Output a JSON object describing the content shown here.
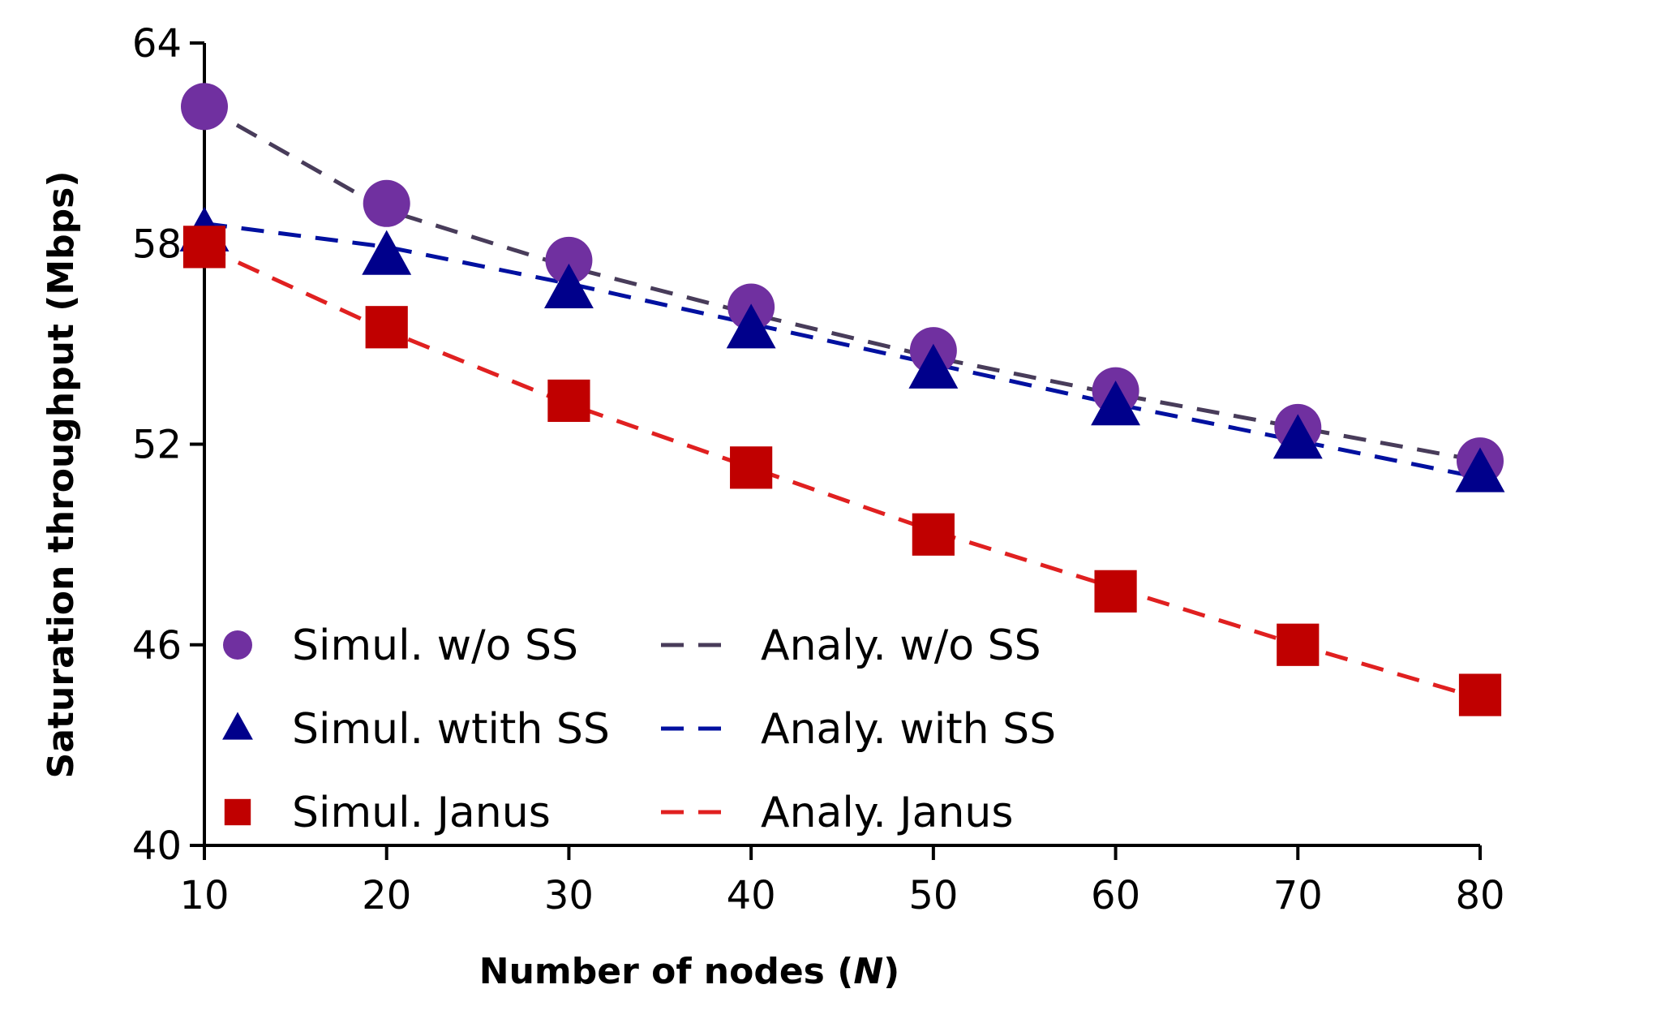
{
  "chart_data": {
    "type": "line",
    "xlabel": "Number of nodes (",
    "xlabel_italic": "N",
    "xlabel_suffix": ")",
    "ylabel": "Saturation throughput (Mbps)",
    "x": [
      10,
      20,
      30,
      40,
      50,
      60,
      70,
      80
    ],
    "xlim": [
      10,
      80
    ],
    "ylim": [
      40,
      64
    ],
    "xticks": [
      "10",
      "20",
      "30",
      "40",
      "50",
      "60",
      "70",
      "80"
    ],
    "yticks": [
      "40",
      "46",
      "52",
      "58",
      "64"
    ],
    "grid": false,
    "legend_position": "bottom-left",
    "series": [
      {
        "name": "Simul. w/o SS",
        "kind": "marker",
        "marker": "circle",
        "color": "#7030A0",
        "values": [
          62.1,
          59.2,
          57.5,
          56.1,
          54.8,
          53.6,
          52.5,
          51.5
        ]
      },
      {
        "name": "Simul. wtith SS",
        "kind": "marker",
        "marker": "triangle",
        "color": "#00008B",
        "values": [
          58.3,
          57.6,
          56.6,
          55.4,
          54.2,
          53.1,
          52.1,
          51.1
        ]
      },
      {
        "name": "Simul. Janus",
        "kind": "marker",
        "marker": "square",
        "color": "#C00000",
        "values": [
          57.9,
          55.5,
          53.3,
          51.3,
          49.3,
          47.6,
          46.0,
          44.5
        ]
      },
      {
        "name": "Analy. w/o SS",
        "kind": "line",
        "color": "#483C5A",
        "values": [
          62.1,
          59.0,
          57.3,
          55.9,
          54.6,
          53.5,
          52.5,
          51.5
        ]
      },
      {
        "name": "Analy. with SS",
        "kind": "line",
        "color": "#0010A0",
        "values": [
          58.6,
          57.9,
          56.8,
          55.6,
          54.4,
          53.2,
          52.1,
          51.0
        ]
      },
      {
        "name": "Analy. Janus",
        "kind": "line",
        "color": "#E02020",
        "values": [
          57.9,
          55.4,
          53.2,
          51.3,
          49.4,
          47.7,
          46.0,
          44.4
        ]
      }
    ]
  }
}
